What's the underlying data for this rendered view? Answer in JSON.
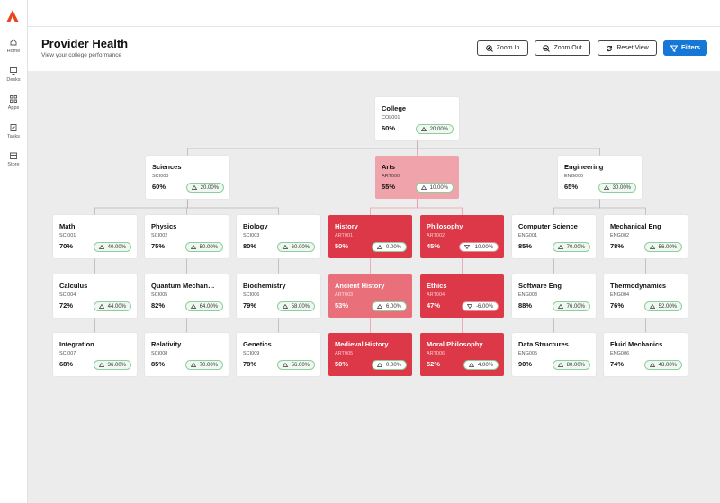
{
  "nav": [
    "Home",
    "Desks",
    "Apps",
    "Tasks",
    "Store"
  ],
  "header": {
    "title": "Provider Health",
    "subtitle": "View your college performance"
  },
  "buttons": [
    "Zoom In",
    "Zoom Out",
    "Reset View",
    "Filters"
  ],
  "nodes": [
    {
      "name": "College",
      "code": "COL001",
      "score": "60%",
      "change": "20.00%",
      "color": "#ffffff"
    },
    {
      "name": "Sciences",
      "code": "SCI000",
      "score": "60%",
      "change": "20.00%",
      "color": "#ffffff"
    },
    {
      "name": "Arts",
      "code": "ART000",
      "score": "55%",
      "change": "10.00%",
      "color": "#f0a3aa"
    },
    {
      "name": "Engineering",
      "code": "ENG000",
      "score": "65%",
      "change": "30.00%",
      "color": "#ffffff"
    },
    {
      "name": "Math",
      "code": "SCI001",
      "score": "70%",
      "change": "40.00%",
      "color": "#ffffff"
    },
    {
      "name": "Physics",
      "code": "SCI002",
      "score": "75%",
      "change": "50.00%",
      "color": "#ffffff"
    },
    {
      "name": "Biology",
      "code": "SCI003",
      "score": "80%",
      "change": "60.00%",
      "color": "#ffffff"
    },
    {
      "name": "History",
      "code": "ART001",
      "score": "50%",
      "change": "0.00%",
      "color": "#dc3848"
    },
    {
      "name": "Philosophy",
      "code": "ART002",
      "score": "45%",
      "change": "-10.00%",
      "color": "#dc3848"
    },
    {
      "name": "Computer Science",
      "code": "ENG001",
      "score": "85%",
      "change": "70.00%",
      "color": "#ffffff"
    },
    {
      "name": "Mechanical Eng",
      "code": "ENG002",
      "score": "78%",
      "change": "56.00%",
      "color": "#ffffff"
    },
    {
      "name": "Calculus",
      "code": "SCI004",
      "score": "72%",
      "change": "44.00%",
      "color": "#ffffff"
    },
    {
      "name": "Quantum Mechanics",
      "code": "SCI005",
      "score": "82%",
      "change": "64.00%",
      "color": "#ffffff"
    },
    {
      "name": "Biochemistry",
      "code": "SCI006",
      "score": "79%",
      "change": "58.00%",
      "color": "#ffffff"
    },
    {
      "name": "Ancient History",
      "code": "ART003",
      "score": "53%",
      "change": "6.00%",
      "color": "#e9707b"
    },
    {
      "name": "Ethics",
      "code": "ART004",
      "score": "47%",
      "change": "-6.00%",
      "color": "#dc3848"
    },
    {
      "name": "Software Eng",
      "code": "ENG003",
      "score": "88%",
      "change": "76.00%",
      "color": "#ffffff"
    },
    {
      "name": "Thermodynamics",
      "code": "ENG004",
      "score": "76%",
      "change": "52.00%",
      "color": "#ffffff"
    },
    {
      "name": "Integration",
      "code": "SCI007",
      "score": "68%",
      "change": "36.00%",
      "color": "#ffffff"
    },
    {
      "name": "Relativity",
      "code": "SCI008",
      "score": "85%",
      "change": "70.00%",
      "color": "#ffffff"
    },
    {
      "name": "Genetics",
      "code": "SCI009",
      "score": "78%",
      "change": "56.00%",
      "color": "#ffffff"
    },
    {
      "name": "Medieval History",
      "code": "ART005",
      "score": "50%",
      "change": "0.00%",
      "color": "#dc3848"
    },
    {
      "name": "Moral Philosophy",
      "code": "ART006",
      "score": "52%",
      "change": "4.00%",
      "color": "#dc3848"
    },
    {
      "name": "Data Structures",
      "code": "ENG005",
      "score": "90%",
      "change": "80.00%",
      "color": "#ffffff"
    },
    {
      "name": "Fluid Mechanics",
      "code": "ENG006",
      "score": "74%",
      "change": "48.00%",
      "color": "#ffffff"
    }
  ]
}
